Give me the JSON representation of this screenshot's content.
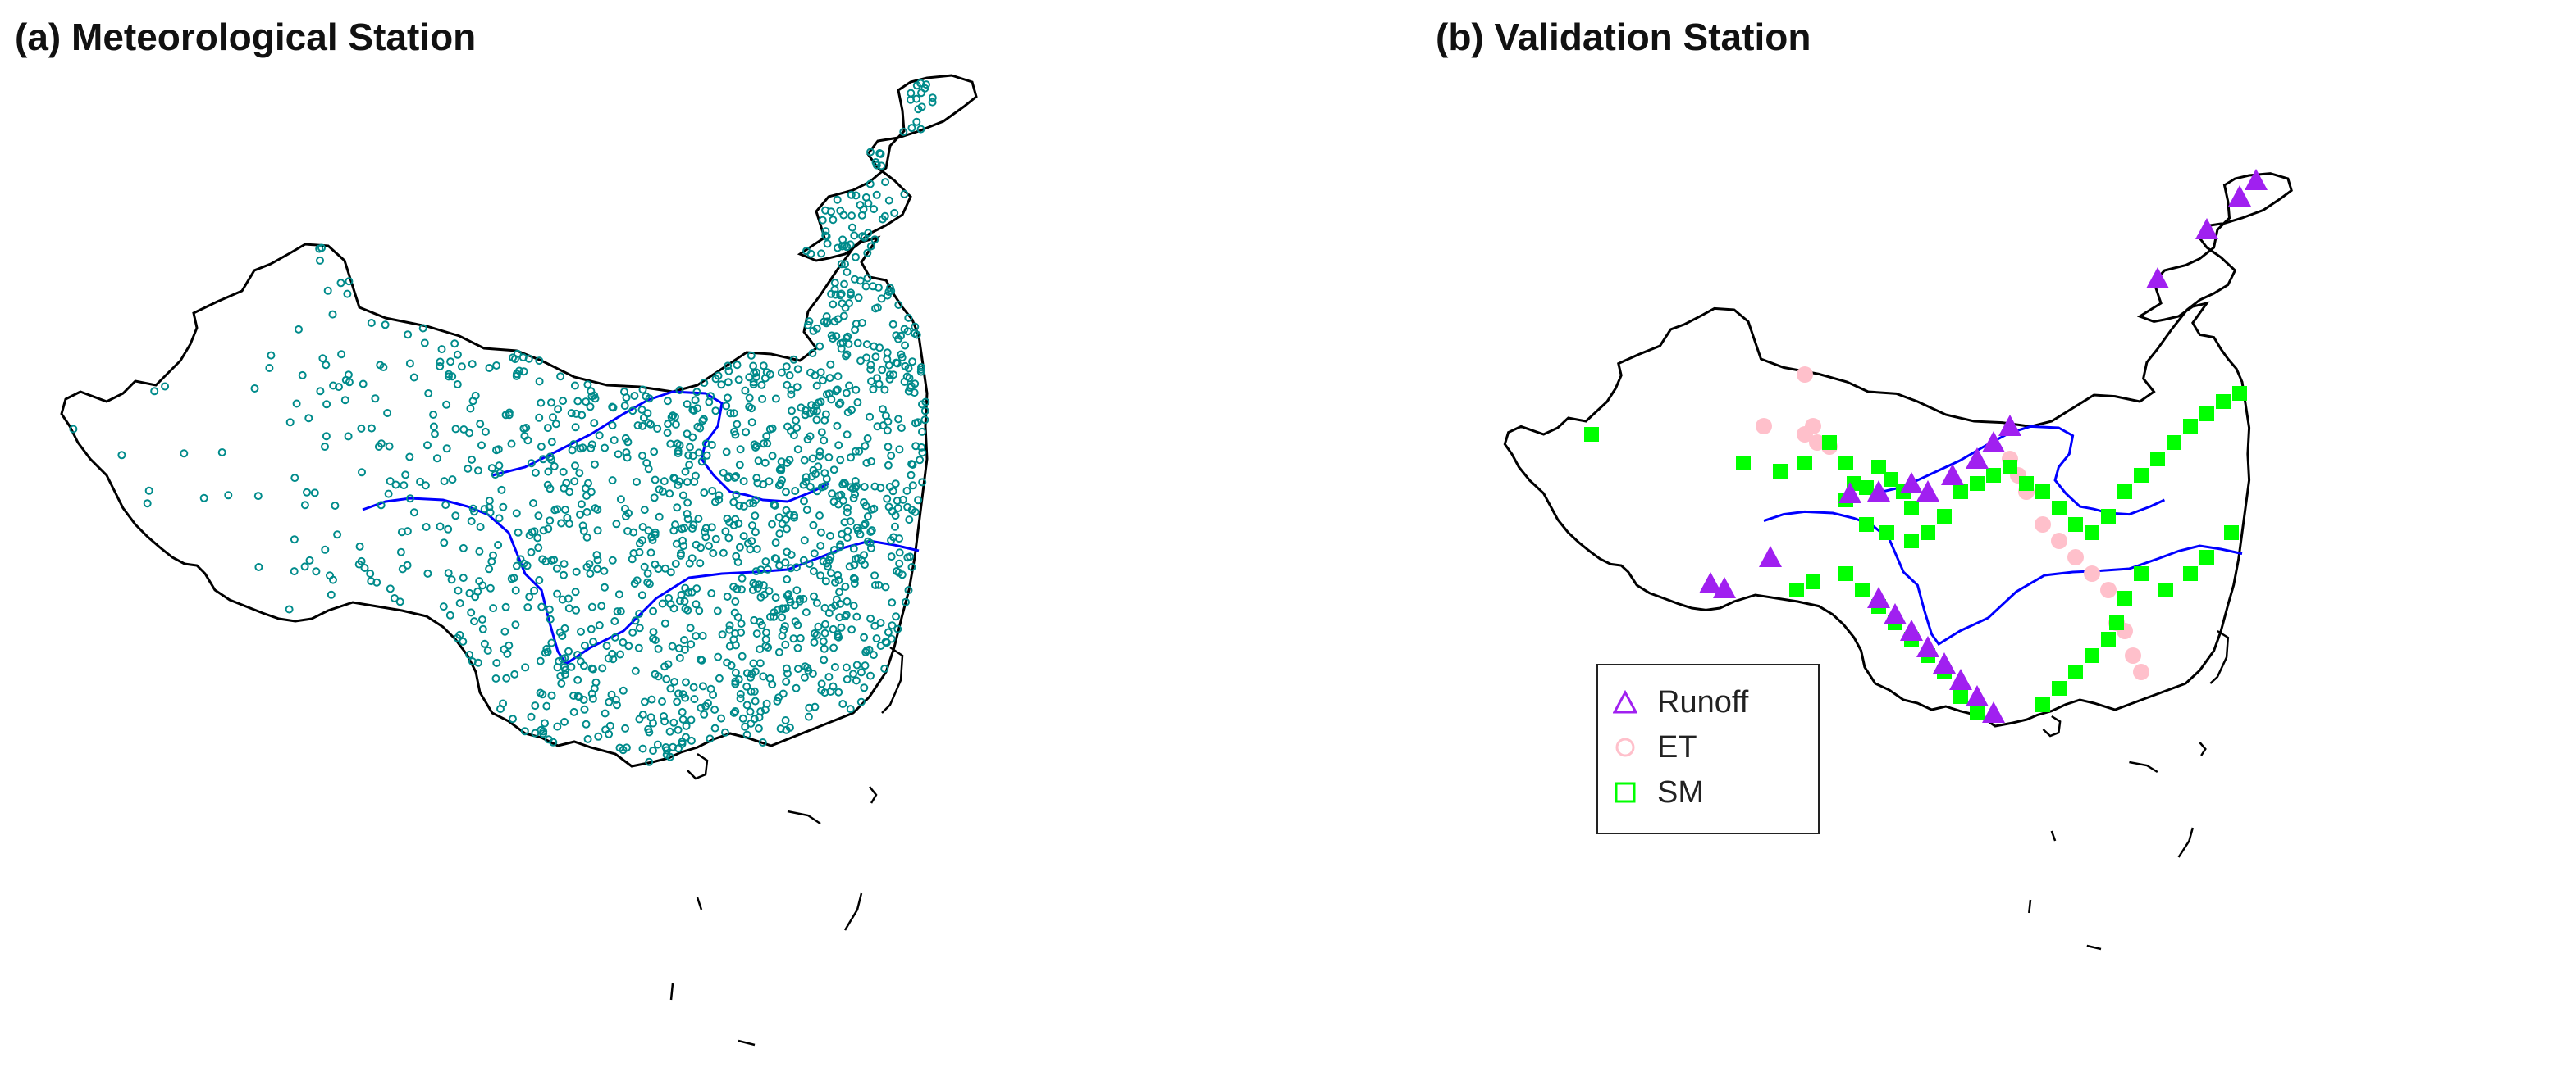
{
  "panels": [
    {
      "id": "a",
      "title": "(a) Meteorological Station",
      "marker_color": "#008b8b",
      "river_color": "#0000ff"
    },
    {
      "id": "b",
      "title": "(b) Validation Station",
      "river_color": "#0000ff"
    }
  ],
  "legend": {
    "items": [
      {
        "label": "Runoff",
        "shape": "triangle-outline",
        "color": "#a020f0"
      },
      {
        "label": "ET",
        "shape": "circle-outline",
        "color": "#ffc0cb"
      },
      {
        "label": "SM",
        "shape": "square-outline",
        "color": "#00ff00"
      }
    ]
  },
  "colors": {
    "runoff": "#a020f0",
    "et": "#ffc0cb",
    "sm": "#00ff00",
    "met": "#008b8b",
    "border": "#000000",
    "river": "#0000ff"
  }
}
